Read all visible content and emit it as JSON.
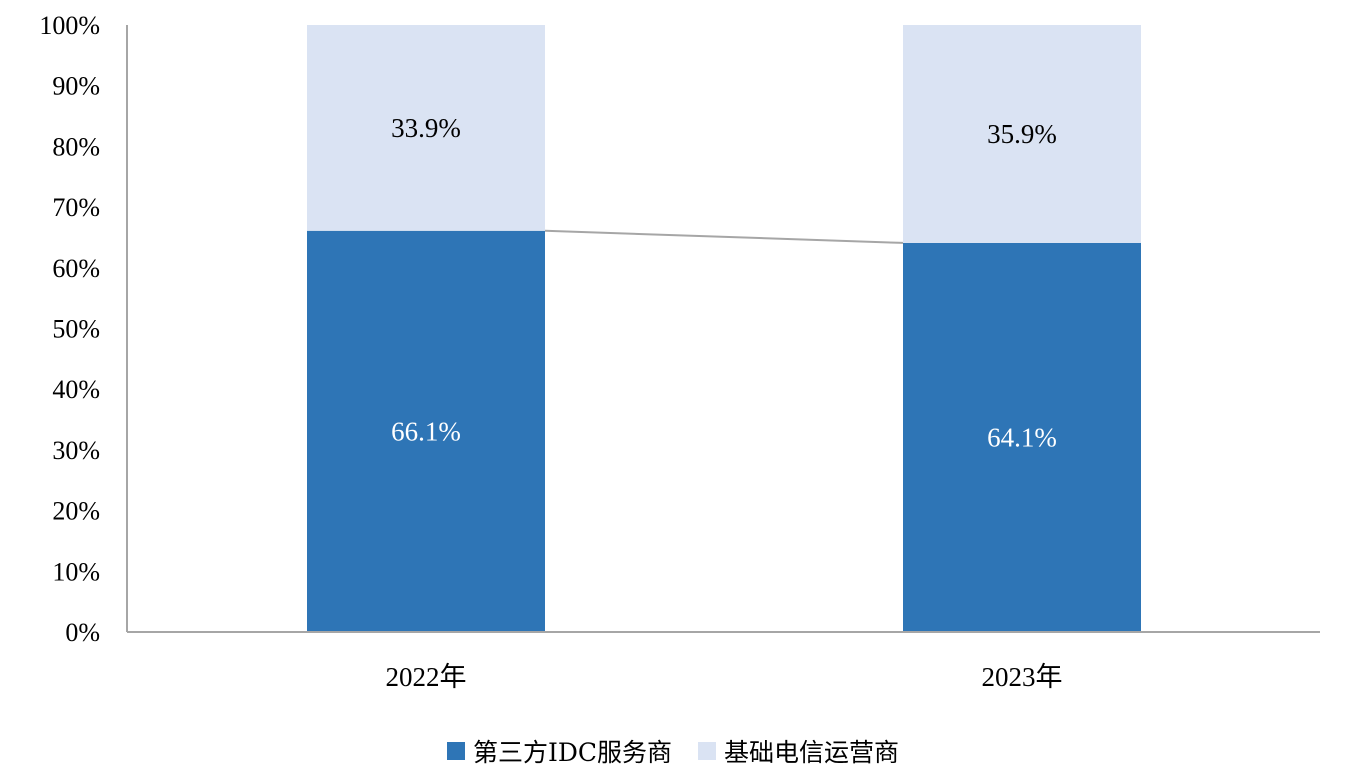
{
  "chart_data": {
    "type": "bar",
    "stacked": true,
    "categories": [
      "2022年",
      "2023年"
    ],
    "series": [
      {
        "name": "第三方IDC服务商",
        "values": [
          66.1,
          64.1
        ],
        "labels": [
          "66.1%",
          "64.1%"
        ],
        "color": "#2e75b6",
        "label_color": "#ffffff"
      },
      {
        "name": "基础电信运营商",
        "values": [
          33.9,
          35.9
        ],
        "labels": [
          "33.9%",
          "35.9%"
        ],
        "color": "#dae3f3",
        "label_color": "#000000"
      }
    ],
    "ylim": [
      0,
      100
    ],
    "yticks": [
      "0%",
      "10%",
      "20%",
      "30%",
      "40%",
      "50%",
      "60%",
      "70%",
      "80%",
      "90%",
      "100%"
    ],
    "series_lines": true,
    "legend_position": "bottom",
    "grid": false
  }
}
